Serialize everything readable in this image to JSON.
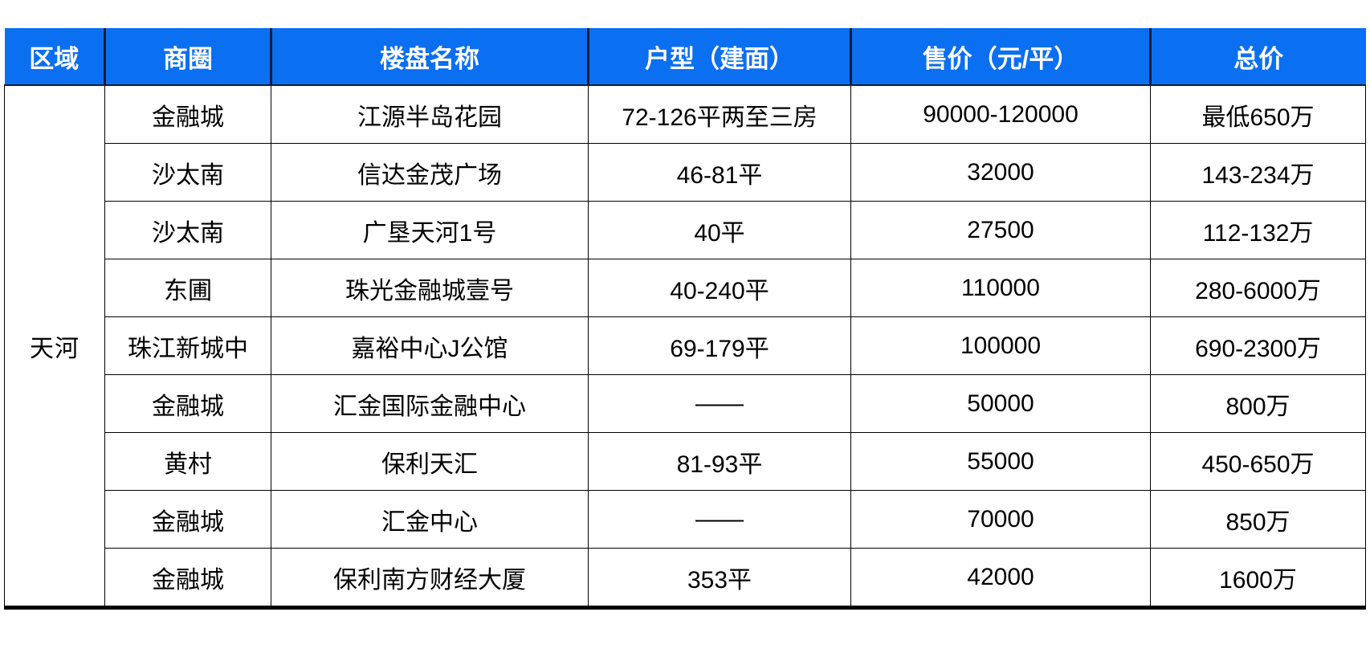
{
  "colors": {
    "header_bg": "#0b6ff2",
    "header_text": "#ffffff",
    "header_divider": "#0f1c38",
    "grid_line": "#000000",
    "body_text": "#000000",
    "page_bg": "#ffffff"
  },
  "table": {
    "headers": [
      "区域",
      "商圈",
      "楼盘名称",
      "户型（建面）",
      "售价（元/平）",
      "总价"
    ],
    "region": "天河",
    "rows": [
      {
        "district": "金融城",
        "name": "江源半岛花园",
        "unit": "72-126平两至三房",
        "price": "90000-120000",
        "total": "最低650万"
      },
      {
        "district": "沙太南",
        "name": "信达金茂广场",
        "unit": "46-81平",
        "price": "32000",
        "total": "143-234万"
      },
      {
        "district": "沙太南",
        "name": "广垦天河1号",
        "unit": "40平",
        "price": "27500",
        "total": "112-132万"
      },
      {
        "district": "东圃",
        "name": "珠光金融城壹号",
        "unit": "40-240平",
        "price": "110000",
        "total": "280-6000万"
      },
      {
        "district": "珠江新城中",
        "name": "嘉裕中心J公馆",
        "unit": "69-179平",
        "price": "100000",
        "total": "690-2300万"
      },
      {
        "district": "金融城",
        "name": "汇金国际金融中心",
        "unit": "——",
        "price": "50000",
        "total": "800万"
      },
      {
        "district": "黄村",
        "name": "保利天汇",
        "unit": "81-93平",
        "price": "55000",
        "total": "450-650万"
      },
      {
        "district": "金融城",
        "name": "汇金中心",
        "unit": "——",
        "price": "70000",
        "total": "850万"
      },
      {
        "district": "金融城",
        "name": "保利南方财经大厦",
        "unit": "353平",
        "price": "42000",
        "total": "1600万"
      }
    ]
  }
}
